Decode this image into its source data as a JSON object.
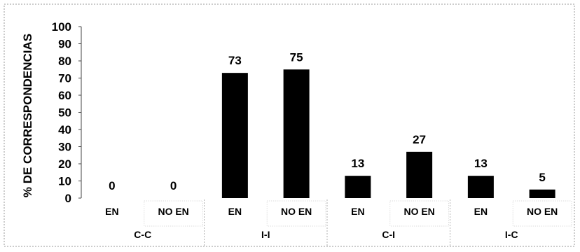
{
  "chart_data": {
    "type": "bar",
    "ylabel": "% DE CORRESPONDENCIAS",
    "ylim": [
      0,
      100
    ],
    "yticks": [
      0,
      10,
      20,
      30,
      40,
      50,
      60,
      70,
      80,
      90,
      100
    ],
    "groups": [
      {
        "label": "C-C",
        "categories": [
          "EN",
          "NO EN"
        ],
        "values": [
          0,
          0
        ]
      },
      {
        "label": "I-I",
        "categories": [
          "EN",
          "NO EN"
        ],
        "values": [
          73,
          75
        ]
      },
      {
        "label": "C-I",
        "categories": [
          "EN",
          "NO EN"
        ],
        "values": [
          13,
          27
        ]
      },
      {
        "label": "I-C",
        "categories": [
          "EN",
          "NO EN"
        ],
        "values": [
          13,
          5
        ]
      }
    ],
    "grid": false,
    "bar_color": "#000000"
  }
}
